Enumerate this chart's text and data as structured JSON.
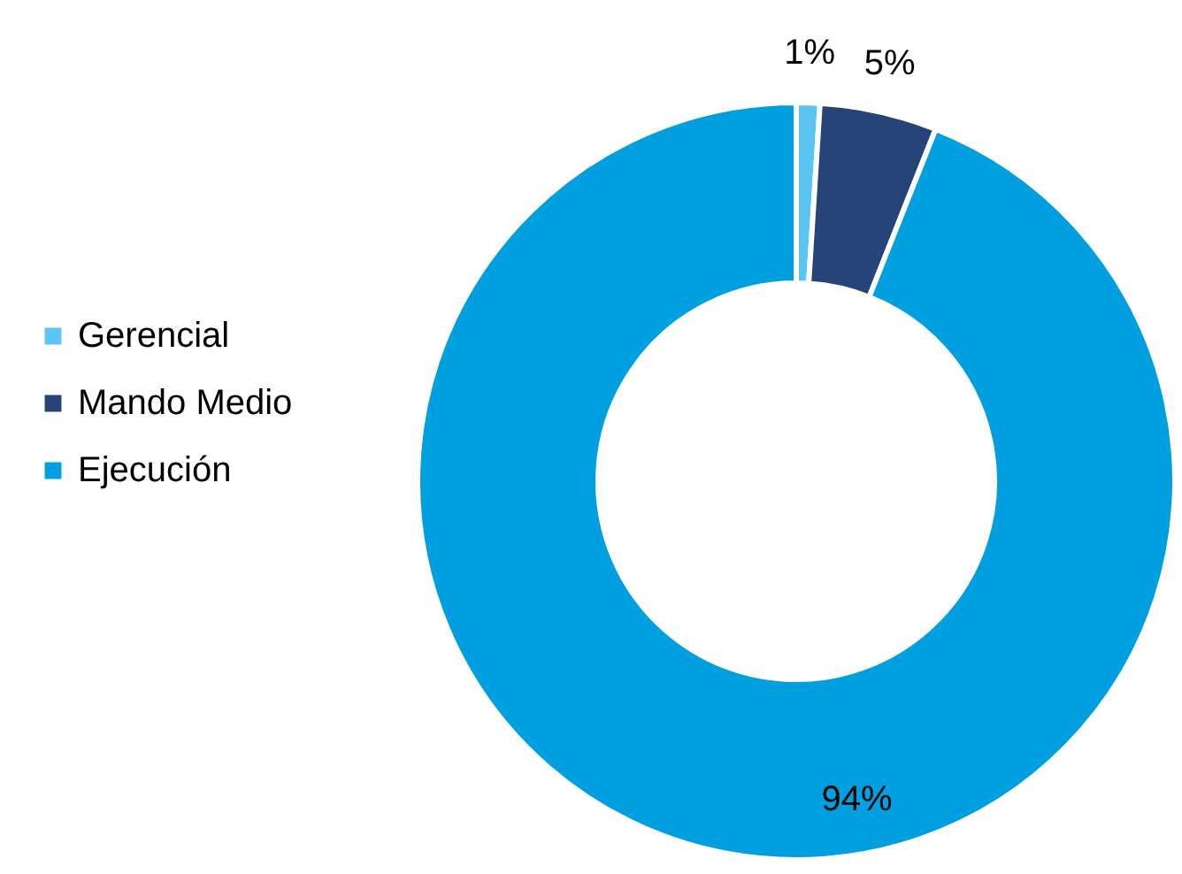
{
  "chart_data": {
    "type": "donut",
    "categories": [
      "Gerencial",
      "Mando Medio",
      "Ejecución"
    ],
    "values": [
      1,
      5,
      94
    ],
    "colors": [
      "#5bc5f2",
      "#264478",
      "#00a0e0"
    ],
    "value_labels": [
      "1%",
      "5%",
      "94%"
    ],
    "legend": "left"
  }
}
